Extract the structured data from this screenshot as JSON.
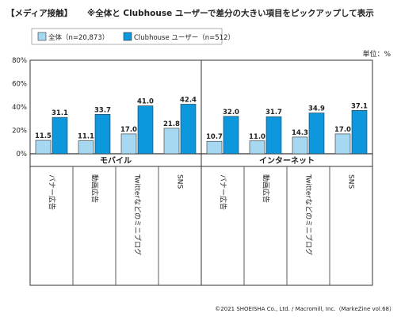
{
  "header": {
    "title": "【メディア接触】",
    "note": "※全体と Clubhouse ユーザーで差分の大きい項目をピックアップして表示"
  },
  "unit_label": "単位：%",
  "footer": "©2021 SHOEISHA Co., Ltd. / Macromill, Inc.（MarkeZine vol.68）",
  "colors": {
    "overall": "#a6d8f2",
    "clubhouse": "#0d97dd",
    "border": "#333333"
  },
  "chart_data": {
    "type": "bar",
    "groups": [
      {
        "name": "モバイル",
        "categories": [
          "バナー広告",
          "動画広告",
          "Twitterなどのミニブログ",
          "SNS"
        ]
      },
      {
        "name": "インターネット",
        "categories": [
          "バナー広告",
          "動画広告",
          "Twitterなどのミニブログ",
          "SNS"
        ]
      }
    ],
    "series": [
      {
        "name": "全体（n=20,873）",
        "values": [
          11.5,
          11.1,
          17.0,
          21.8,
          10.7,
          11.0,
          14.3,
          17.0
        ]
      },
      {
        "name": "Clubhouse ユーザー（n=512）",
        "values": [
          31.1,
          33.7,
          41.0,
          42.4,
          32.0,
          31.7,
          34.9,
          37.1
        ]
      }
    ],
    "ylim": [
      0,
      80
    ],
    "yticks": [
      "0%",
      "20%",
      "40%",
      "60%",
      "80%"
    ],
    "ylabel": "単位：%",
    "legend_position": "top-left",
    "grid": false
  }
}
